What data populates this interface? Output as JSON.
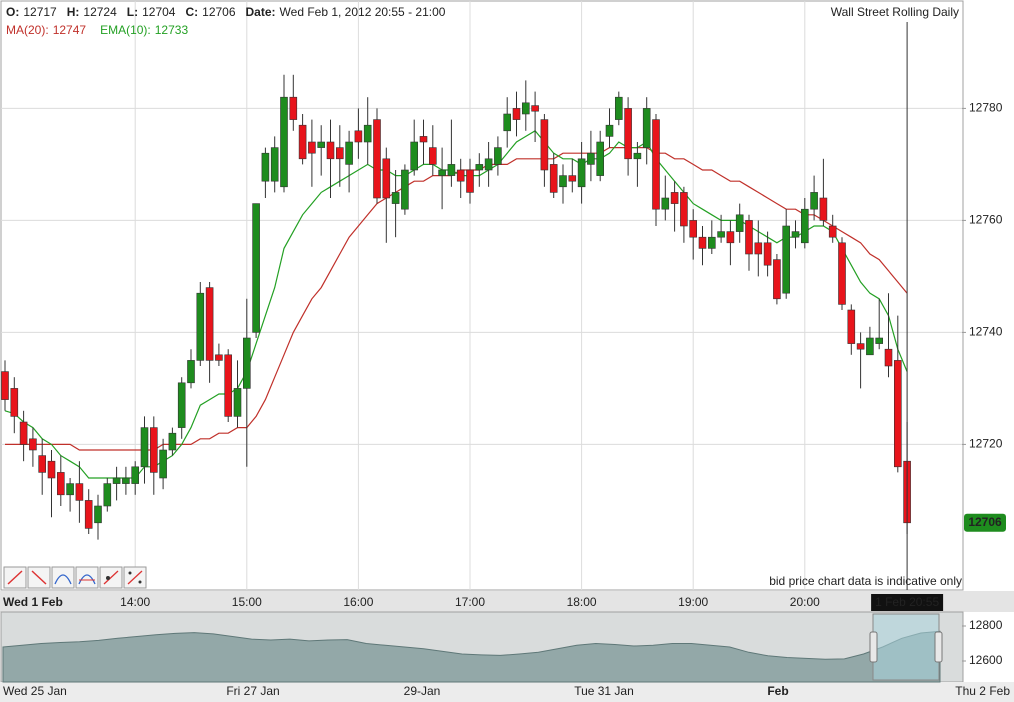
{
  "chart_data": {
    "type": "candlestick",
    "title": "Wall Street Rolling Daily",
    "note": "bid price chart data is indicative only",
    "readout": [
      {
        "label": "O:",
        "value": 12717
      },
      {
        "label": "H:",
        "value": 12724
      },
      {
        "label": "L:",
        "value": 12704
      },
      {
        "label": "C:",
        "value": 12706
      }
    ],
    "date_label": "Date:",
    "date": "Wed Feb 1, 2012 20:55 - 21:00",
    "cursor_label": "1 Feb 20:55",
    "last_price": 12706,
    "up_color": "#1e8c1e",
    "down_color": "#e8141b",
    "ylim": [
      12694,
      12799
    ],
    "yticks": [
      12720,
      12740,
      12760,
      12780
    ],
    "grid": true,
    "categories": [
      "Wed 1 Feb",
      null,
      null,
      null,
      null,
      null,
      null,
      null,
      null,
      null,
      null,
      null,
      null,
      null,
      "14:00",
      null,
      null,
      null,
      null,
      null,
      null,
      null,
      null,
      null,
      null,
      null,
      "15:00",
      null,
      null,
      null,
      null,
      null,
      null,
      null,
      null,
      null,
      null,
      null,
      "16:00",
      null,
      null,
      null,
      null,
      null,
      null,
      null,
      null,
      null,
      null,
      null,
      "17:00",
      null,
      null,
      null,
      null,
      null,
      null,
      null,
      null,
      null,
      null,
      null,
      "18:00",
      null,
      null,
      null,
      null,
      null,
      null,
      null,
      null,
      null,
      null,
      null,
      "19:00",
      null,
      null,
      null,
      null,
      null,
      null,
      null,
      null,
      null,
      null,
      null,
      "20:00",
      null,
      null,
      null,
      null,
      null,
      null,
      null,
      null,
      null,
      null,
      null
    ],
    "open": [
      12733,
      12730,
      12724,
      12721,
      12718,
      12717,
      12715,
      12711,
      12713,
      12710,
      12706,
      12709,
      12713,
      12713,
      12713,
      12716,
      12723,
      12714,
      12719,
      12723,
      12731,
      12735,
      12748,
      12736,
      12736,
      12725,
      12730,
      12740,
      12767,
      12767,
      12766,
      12782,
      12777,
      12774,
      12773,
      12774,
      12773,
      12770,
      12776,
      12774,
      12778,
      12771,
      12763,
      12762,
      12769,
      12775,
      12773,
      12768,
      12768,
      12769,
      12769,
      12769,
      12769,
      12770,
      12776,
      12780,
      12779,
      12780.5,
      12778,
      12770,
      12766,
      12768,
      12766,
      12770,
      12768,
      12775,
      12778,
      12780,
      12771,
      12773,
      12778,
      12762,
      12765,
      12765,
      12760,
      12757,
      12755,
      12757,
      12758,
      12758,
      12760,
      12756,
      12756,
      12753,
      12747,
      12757,
      12756,
      12762,
      12764,
      12759,
      12756,
      12744,
      12738,
      12736,
      12738,
      12737,
      12735,
      12717
    ],
    "high": [
      12735,
      12732,
      12726,
      12723,
      12721,
      12719,
      12718,
      12714,
      12717,
      12712,
      12711,
      12714,
      12716,
      12716,
      12717,
      12725,
      12725,
      12721,
      12723,
      12732,
      12737,
      12749,
      12749,
      12738,
      12737,
      12735,
      12746,
      12763,
      12773,
      12775,
      12786,
      12786,
      12779,
      12778,
      12777,
      12778,
      12777,
      12776,
      12780,
      12782,
      12780,
      12773,
      12769,
      12770,
      12778,
      12778,
      12777,
      12773,
      12778,
      12771,
      12771,
      12772,
      12774,
      12775,
      12782,
      12783,
      12785,
      12783,
      12779,
      12772,
      12770,
      12771,
      12774,
      12776,
      12776,
      12780,
      12783,
      12782,
      12774,
      12782,
      12779,
      12768,
      12767,
      12766,
      12762,
      12759,
      12760,
      12761,
      12760,
      12763,
      12761,
      12760,
      12758,
      12754,
      12762,
      12760,
      12764,
      12768,
      12771,
      12761,
      12757,
      12745,
      12740,
      12741,
      12746,
      12747,
      12743,
      12724
    ],
    "low": [
      12726,
      12722,
      12717,
      12716,
      12711,
      12707,
      12709,
      12708,
      12706,
      12704,
      12703,
      12708,
      12710,
      12711,
      12711,
      12713,
      12711,
      12712,
      12718,
      12721,
      12730,
      12734,
      12731,
      12734,
      12724,
      12723,
      12716,
      12739,
      12764,
      12765,
      12765,
      12776,
      12770,
      12766,
      12768,
      12764,
      12766,
      12765,
      12771,
      12770,
      12763,
      12756,
      12757,
      12761,
      12768,
      12770,
      12768,
      12762,
      12766,
      12764,
      12763,
      12766,
      12766,
      12768,
      12773,
      12775,
      12776,
      12774,
      12766,
      12764,
      12763,
      12765,
      12763,
      12767,
      12767,
      12773,
      12777,
      12768,
      12766,
      12770,
      12759,
      12760,
      12758,
      12756,
      12753,
      12752,
      12754,
      12756,
      12752,
      12756,
      12751,
      12750,
      12750,
      12745,
      12746,
      12755,
      12755,
      12760,
      12759,
      12756,
      12744,
      12736,
      12730,
      12736,
      12737,
      12732,
      12715,
      12704
    ],
    "close": [
      12728,
      12725,
      12720,
      12719,
      12715,
      12714,
      12711,
      12713,
      12710,
      12705,
      12709,
      12713,
      12714,
      12714,
      12716,
      12723,
      12715,
      12719,
      12722,
      12731,
      12735,
      12747,
      12735,
      12735,
      12725,
      12730,
      12739,
      12763,
      12772,
      12773,
      12782,
      12778,
      12771,
      12772,
      12774,
      12771,
      12771,
      12774,
      12774,
      12777,
      12764,
      12764,
      12765,
      12769,
      12774,
      12774,
      12770,
      12769,
      12770,
      12767,
      12765,
      12770,
      12771,
      12773,
      12779,
      12778,
      12781,
      12779.5,
      12769,
      12765,
      12768,
      12767,
      12771,
      12772,
      12774,
      12777,
      12782,
      12771,
      12772,
      12780,
      12762,
      12764,
      12763,
      12759,
      12757,
      12755,
      12757,
      12758,
      12756,
      12761,
      12754,
      12754,
      12752,
      12746,
      12759,
      12758,
      12762,
      12765,
      12760,
      12757,
      12745,
      12738,
      12737,
      12739,
      12739,
      12734,
      12716,
      12706
    ],
    "indicators": [
      {
        "name": "MA(20):",
        "value": 12747,
        "color": "#c0302a",
        "values": [
          12720,
          12720,
          12720,
          12720,
          12720,
          12720,
          12720,
          12720,
          12719,
          12719,
          12719,
          12719,
          12719,
          12719,
          12719,
          12719,
          12719,
          12720,
          12720,
          12720,
          12720,
          12721,
          12721,
          12722,
          12722,
          12723,
          12723,
          12725,
          12728,
          12732,
          12736,
          12740,
          12743,
          12746,
          12748,
          12751,
          12754,
          12757,
          12759,
          12761,
          12763,
          12764,
          12765,
          12766,
          12767,
          12767,
          12768,
          12768,
          12768,
          12769,
          12769,
          12769,
          12770,
          12770,
          12770,
          12771,
          12771,
          12771,
          12771,
          12771,
          12772,
          12772,
          12772,
          12772,
          12772,
          12773,
          12773,
          12773,
          12773,
          12773,
          12772,
          12772,
          12771,
          12771,
          12770,
          12769,
          12769,
          12768,
          12767,
          12767,
          12766,
          12765,
          12764,
          12763,
          12762,
          12762,
          12761,
          12761,
          12760,
          12759,
          12758,
          12757,
          12756,
          12754,
          12753,
          12751,
          12749,
          12747
        ]
      },
      {
        "name": "EMA(10):",
        "value": 12733,
        "color": "#23a023",
        "values": [
          12726,
          12725.5,
          12724,
          12723,
          12721,
          12720,
          12718,
          12717,
          12716,
          12714,
          12714,
          12714,
          12714,
          12714,
          12714,
          12716,
          12716,
          12717,
          12718,
          12720,
          12723,
          12727,
          12728,
          12729,
          12729,
          12730,
          12733,
          12738,
          12743,
          12748,
          12755,
          12758,
          12761,
          12763,
          12765,
          12766,
          12767,
          12768,
          12769,
          12770,
          12769,
          12769,
          12768,
          12768,
          12769,
          12770,
          12770,
          12769,
          12769,
          12768,
          12768,
          12768,
          12769,
          12770,
          12772,
          12774,
          12775,
          12776,
          12774,
          12772,
          12771,
          12771,
          12770,
          12771,
          12771,
          12772,
          12774,
          12773,
          12773,
          12774,
          12771,
          12769,
          12767,
          12765,
          12763,
          12762,
          12761,
          12760,
          12760,
          12760,
          12759,
          12758,
          12757,
          12756,
          12757,
          12757,
          12758,
          12759,
          12759,
          12758,
          12755,
          12752,
          12749,
          12747,
          12746,
          12743,
          12737,
          12733
        ]
      }
    ],
    "navigator": {
      "values": [
        12680,
        12690,
        12700,
        12706,
        12710,
        12718,
        12730,
        12740,
        12750,
        12758,
        12762,
        12755,
        12740,
        12725,
        12720,
        12725,
        12715,
        12720,
        12722,
        12700,
        12690,
        12680,
        12670,
        12655,
        12640,
        12635,
        12632,
        12640,
        12650,
        12670,
        12690,
        12700,
        12694,
        12686,
        12690,
        12700,
        12700,
        12690,
        12680,
        12650,
        12630,
        12620,
        12615,
        12610,
        12612,
        12640,
        12680,
        12730,
        12760,
        12770
      ],
      "ylim": [
        12480,
        12880
      ],
      "yticks": [
        12800,
        12600
      ],
      "labels": [
        "Wed 25 Jan",
        "Fri 27 Jan",
        "29-Jan",
        "Tue 31 Jan",
        "Feb",
        "Thu 2 Feb"
      ]
    }
  }
}
